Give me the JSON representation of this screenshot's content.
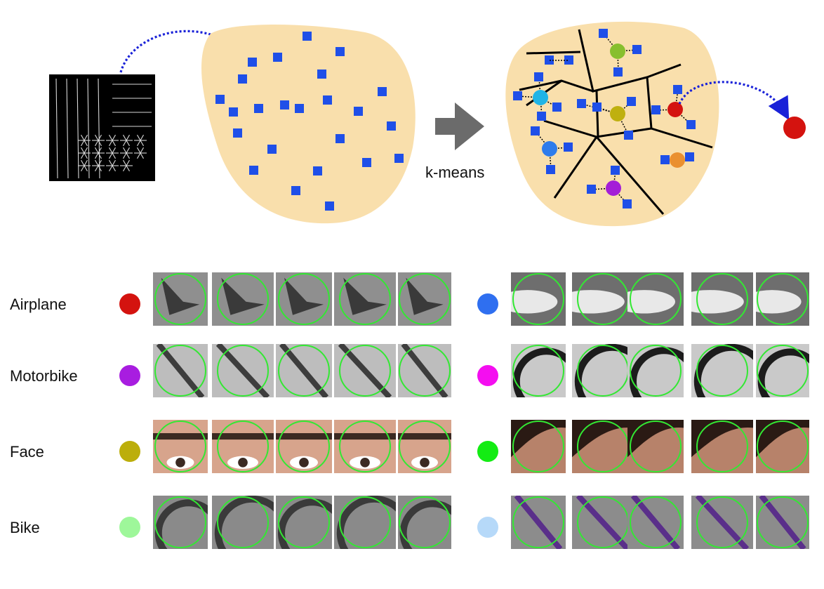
{
  "diagram": {
    "arrow_label": "k-means",
    "descriptor_patch_icon": "gradient-descriptor-grid",
    "colors": {
      "blob": "#f9dfac",
      "point": "#1f4fe8",
      "arrow": "#1a22d8",
      "big_arrow": "#6b6b6b",
      "output_centroid": "#d4130f"
    },
    "centroid_colors": [
      "#20b4e6",
      "#87bf2e",
      "#bfb00f",
      "#d4130f",
      "#2e7cec",
      "#ea9030",
      "#a41ed7"
    ]
  },
  "rows": [
    {
      "label": "Airplane",
      "left_color": "#d4130f",
      "right_color": "#2f6ff0",
      "left_subject": "airplane-tail-patches",
      "right_subject": "airplane-nose-patches"
    },
    {
      "label": "Motorbike",
      "left_color": "#a81de0",
      "right_color": "#f40ef0",
      "left_subject": "motorbike-fork-patches",
      "right_subject": "motorbike-tire-patches"
    },
    {
      "label": "Face",
      "left_color": "#bcae0b",
      "right_color": "#13ec13",
      "left_subject": "eye-eyebrow-patches",
      "right_subject": "hairline-patches"
    },
    {
      "label": "Bike",
      "left_color": "#9ef79a",
      "right_color": "#b6d9f9",
      "left_subject": "bike-wheel-patches",
      "right_subject": "bike-frame-patches"
    }
  ]
}
